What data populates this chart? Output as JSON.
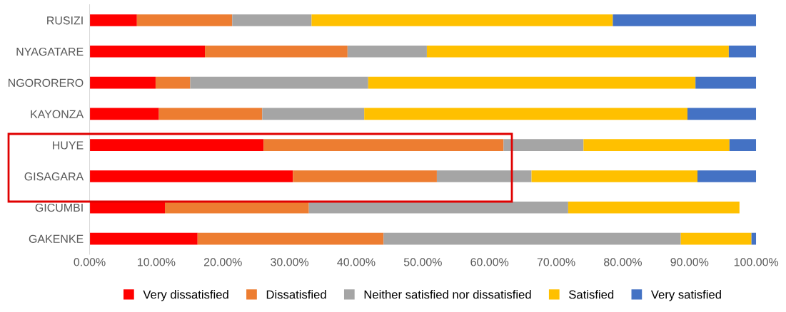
{
  "chart_data": {
    "type": "bar",
    "orientation": "horizontal",
    "stacked": true,
    "categories": [
      "RUSIZI",
      "NYAGATARE",
      "NGORORERO",
      "KAYONZA",
      "HUYE",
      "GISAGARA",
      "GICUMBI",
      "GAKENKE"
    ],
    "series": [
      {
        "name": "Very dissatisfied",
        "color": "#ff0000",
        "values": [
          7.1,
          17.3,
          9.9,
          10.4,
          26.1,
          30.5,
          11.3,
          16.2
        ]
      },
      {
        "name": "Dissatisfied",
        "color": "#ed7d31",
        "values": [
          14.3,
          21.4,
          5.2,
          15.5,
          36.0,
          21.6,
          21.6,
          27.9
        ]
      },
      {
        "name": "Neither satisfied nor dissatisfied",
        "color": "#a5a5a5",
        "values": [
          11.9,
          11.9,
          26.7,
          15.3,
          12.0,
          14.2,
          38.9,
          44.6
        ]
      },
      {
        "name": "Satisfied",
        "color": "#ffc000",
        "values": [
          45.2,
          45.3,
          49.1,
          48.5,
          21.9,
          24.9,
          25.7,
          10.6
        ]
      },
      {
        "name": "Very satisfied",
        "color": "#4472c4",
        "values": [
          21.5,
          4.1,
          9.1,
          10.3,
          4.0,
          8.8,
          0,
          0.7
        ]
      }
    ],
    "xlim": [
      0,
      100
    ],
    "xticks": [
      {
        "value": 0,
        "label": "0.00%"
      },
      {
        "value": 10,
        "label": "10.00%"
      },
      {
        "value": 20,
        "label": "20.00%"
      },
      {
        "value": 30,
        "label": "30.00%"
      },
      {
        "value": 40,
        "label": "40.00%"
      },
      {
        "value": 50,
        "label": "50.00%"
      },
      {
        "value": 60,
        "label": "60.00%"
      },
      {
        "value": 70,
        "label": "70.00%"
      },
      {
        "value": 80,
        "label": "80.00%"
      },
      {
        "value": 90,
        "label": "90.00%"
      },
      {
        "value": 100,
        "label": "100.00%"
      }
    ],
    "grid": false,
    "legend": "bottom"
  }
}
